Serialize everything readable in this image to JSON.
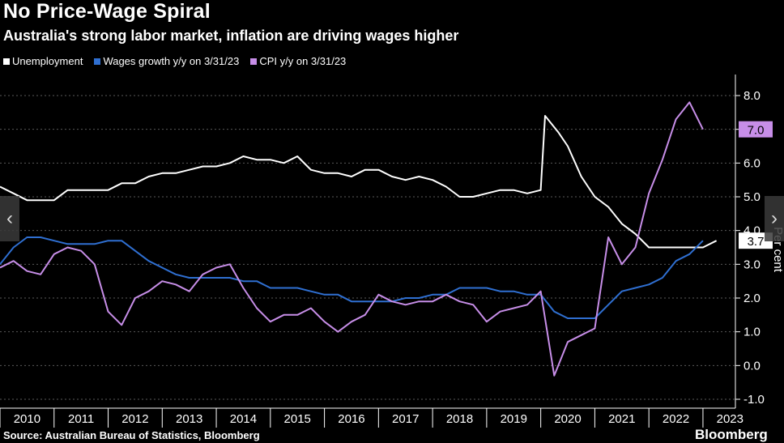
{
  "title": "No Price-Wage Spiral",
  "subtitle": "Australia's strong labor market, inflation are driving wages higher",
  "source": "Source: Australian Bureau of Statistics, Bloomberg",
  "brand": "Bloomberg",
  "nav": {
    "prev_icon": "‹",
    "next_icon": "›"
  },
  "colors": {
    "background": "#000000",
    "unemployment": "#ffffff",
    "wages": "#2f6fd1",
    "cpi": "#c78ee8",
    "grid": "#5a5a5a",
    "cpi_label_bg": "#c78ee8"
  },
  "chart_data": {
    "type": "line",
    "title": "No Price-Wage Spiral",
    "subtitle": "Australia's strong labor market, inflation are driving wages higher",
    "ylabel": "Per cent",
    "ylim": [
      -1.0,
      8.0
    ],
    "yticks": [
      "8.0",
      "7.0",
      "6.0",
      "5.0",
      "4.0",
      "3.0",
      "2.0",
      "1.0",
      "0.0",
      "-1.0"
    ],
    "x_years": [
      "2010",
      "2011",
      "2012",
      "2013",
      "2014",
      "2015",
      "2016",
      "2017",
      "2018",
      "2019",
      "2020",
      "2021",
      "2022",
      "2023"
    ],
    "grid": true,
    "legend_position": "top-left",
    "series": [
      {
        "name": "Unemployment",
        "end_label": "3.7",
        "points": [
          [
            2010.0,
            5.3
          ],
          [
            2010.25,
            5.1
          ],
          [
            2010.5,
            4.9
          ],
          [
            2010.75,
            4.9
          ],
          [
            2011.0,
            4.9
          ],
          [
            2011.25,
            5.2
          ],
          [
            2011.5,
            5.2
          ],
          [
            2011.75,
            5.2
          ],
          [
            2012.0,
            5.2
          ],
          [
            2012.25,
            5.4
          ],
          [
            2012.5,
            5.4
          ],
          [
            2012.75,
            5.6
          ],
          [
            2013.0,
            5.7
          ],
          [
            2013.25,
            5.7
          ],
          [
            2013.5,
            5.8
          ],
          [
            2013.75,
            5.9
          ],
          [
            2014.0,
            5.9
          ],
          [
            2014.25,
            6.0
          ],
          [
            2014.5,
            6.2
          ],
          [
            2014.75,
            6.1
          ],
          [
            2015.0,
            6.1
          ],
          [
            2015.25,
            6.0
          ],
          [
            2015.5,
            6.2
          ],
          [
            2015.75,
            5.8
          ],
          [
            2016.0,
            5.7
          ],
          [
            2016.25,
            5.7
          ],
          [
            2016.5,
            5.6
          ],
          [
            2016.75,
            5.8
          ],
          [
            2017.0,
            5.8
          ],
          [
            2017.25,
            5.6
          ],
          [
            2017.5,
            5.5
          ],
          [
            2017.75,
            5.6
          ],
          [
            2018.0,
            5.5
          ],
          [
            2018.25,
            5.3
          ],
          [
            2018.5,
            5.0
          ],
          [
            2018.75,
            5.0
          ],
          [
            2019.0,
            5.1
          ],
          [
            2019.25,
            5.2
          ],
          [
            2019.5,
            5.2
          ],
          [
            2019.75,
            5.1
          ],
          [
            2020.0,
            5.2
          ],
          [
            2020.08,
            7.4
          ],
          [
            2020.33,
            6.9
          ],
          [
            2020.5,
            6.5
          ],
          [
            2020.75,
            5.6
          ],
          [
            2021.0,
            5.0
          ],
          [
            2021.25,
            4.7
          ],
          [
            2021.5,
            4.2
          ],
          [
            2021.75,
            3.9
          ],
          [
            2022.0,
            3.5
          ],
          [
            2022.25,
            3.5
          ],
          [
            2022.5,
            3.5
          ],
          [
            2022.75,
            3.5
          ],
          [
            2023.0,
            3.5
          ],
          [
            2023.25,
            3.7
          ]
        ]
      },
      {
        "name": "Wages growth y/y on 3/31/23",
        "points": [
          [
            2010.0,
            3.0
          ],
          [
            2010.25,
            3.5
          ],
          [
            2010.5,
            3.8
          ],
          [
            2010.75,
            3.8
          ],
          [
            2011.0,
            3.7
          ],
          [
            2011.25,
            3.6
          ],
          [
            2011.5,
            3.6
          ],
          [
            2011.75,
            3.6
          ],
          [
            2012.0,
            3.7
          ],
          [
            2012.25,
            3.7
          ],
          [
            2012.5,
            3.4
          ],
          [
            2012.75,
            3.1
          ],
          [
            2013.0,
            2.9
          ],
          [
            2013.25,
            2.7
          ],
          [
            2013.5,
            2.6
          ],
          [
            2013.75,
            2.6
          ],
          [
            2014.0,
            2.6
          ],
          [
            2014.25,
            2.6
          ],
          [
            2014.5,
            2.5
          ],
          [
            2014.75,
            2.5
          ],
          [
            2015.0,
            2.3
          ],
          [
            2015.25,
            2.3
          ],
          [
            2015.5,
            2.3
          ],
          [
            2015.75,
            2.2
          ],
          [
            2016.0,
            2.1
          ],
          [
            2016.25,
            2.1
          ],
          [
            2016.5,
            1.9
          ],
          [
            2016.75,
            1.9
          ],
          [
            2017.0,
            1.9
          ],
          [
            2017.25,
            1.9
          ],
          [
            2017.5,
            2.0
          ],
          [
            2017.75,
            2.0
          ],
          [
            2018.0,
            2.1
          ],
          [
            2018.25,
            2.1
          ],
          [
            2018.5,
            2.3
          ],
          [
            2018.75,
            2.3
          ],
          [
            2019.0,
            2.3
          ],
          [
            2019.25,
            2.2
          ],
          [
            2019.5,
            2.2
          ],
          [
            2019.75,
            2.1
          ],
          [
            2020.0,
            2.1
          ],
          [
            2020.25,
            1.6
          ],
          [
            2020.5,
            1.4
          ],
          [
            2020.75,
            1.4
          ],
          [
            2021.0,
            1.4
          ],
          [
            2021.25,
            1.8
          ],
          [
            2021.5,
            2.2
          ],
          [
            2021.75,
            2.3
          ],
          [
            2022.0,
            2.4
          ],
          [
            2022.25,
            2.6
          ],
          [
            2022.5,
            3.1
          ],
          [
            2022.75,
            3.3
          ],
          [
            2023.0,
            3.7
          ]
        ]
      },
      {
        "name": "CPI y/y on 3/31/23",
        "end_label": "7.0",
        "points": [
          [
            2010.0,
            2.9
          ],
          [
            2010.25,
            3.1
          ],
          [
            2010.5,
            2.8
          ],
          [
            2010.75,
            2.7
          ],
          [
            2011.0,
            3.3
          ],
          [
            2011.25,
            3.5
          ],
          [
            2011.5,
            3.4
          ],
          [
            2011.75,
            3.0
          ],
          [
            2012.0,
            1.6
          ],
          [
            2012.25,
            1.2
          ],
          [
            2012.5,
            2.0
          ],
          [
            2012.75,
            2.2
          ],
          [
            2013.0,
            2.5
          ],
          [
            2013.25,
            2.4
          ],
          [
            2013.5,
            2.2
          ],
          [
            2013.75,
            2.7
          ],
          [
            2014.0,
            2.9
          ],
          [
            2014.25,
            3.0
          ],
          [
            2014.5,
            2.3
          ],
          [
            2014.75,
            1.7
          ],
          [
            2015.0,
            1.3
          ],
          [
            2015.25,
            1.5
          ],
          [
            2015.5,
            1.5
          ],
          [
            2015.75,
            1.7
          ],
          [
            2016.0,
            1.3
          ],
          [
            2016.25,
            1.0
          ],
          [
            2016.5,
            1.3
          ],
          [
            2016.75,
            1.5
          ],
          [
            2017.0,
            2.1
          ],
          [
            2017.25,
            1.9
          ],
          [
            2017.5,
            1.8
          ],
          [
            2017.75,
            1.9
          ],
          [
            2018.0,
            1.9
          ],
          [
            2018.25,
            2.1
          ],
          [
            2018.5,
            1.9
          ],
          [
            2018.75,
            1.8
          ],
          [
            2019.0,
            1.3
          ],
          [
            2019.25,
            1.6
          ],
          [
            2019.5,
            1.7
          ],
          [
            2019.75,
            1.8
          ],
          [
            2020.0,
            2.2
          ],
          [
            2020.25,
            -0.3
          ],
          [
            2020.5,
            0.7
          ],
          [
            2020.75,
            0.9
          ],
          [
            2021.0,
            1.1
          ],
          [
            2021.25,
            3.8
          ],
          [
            2021.5,
            3.0
          ],
          [
            2021.75,
            3.5
          ],
          [
            2022.0,
            5.1
          ],
          [
            2022.25,
            6.1
          ],
          [
            2022.5,
            7.3
          ],
          [
            2022.75,
            7.8
          ],
          [
            2023.0,
            7.0
          ]
        ]
      }
    ]
  }
}
